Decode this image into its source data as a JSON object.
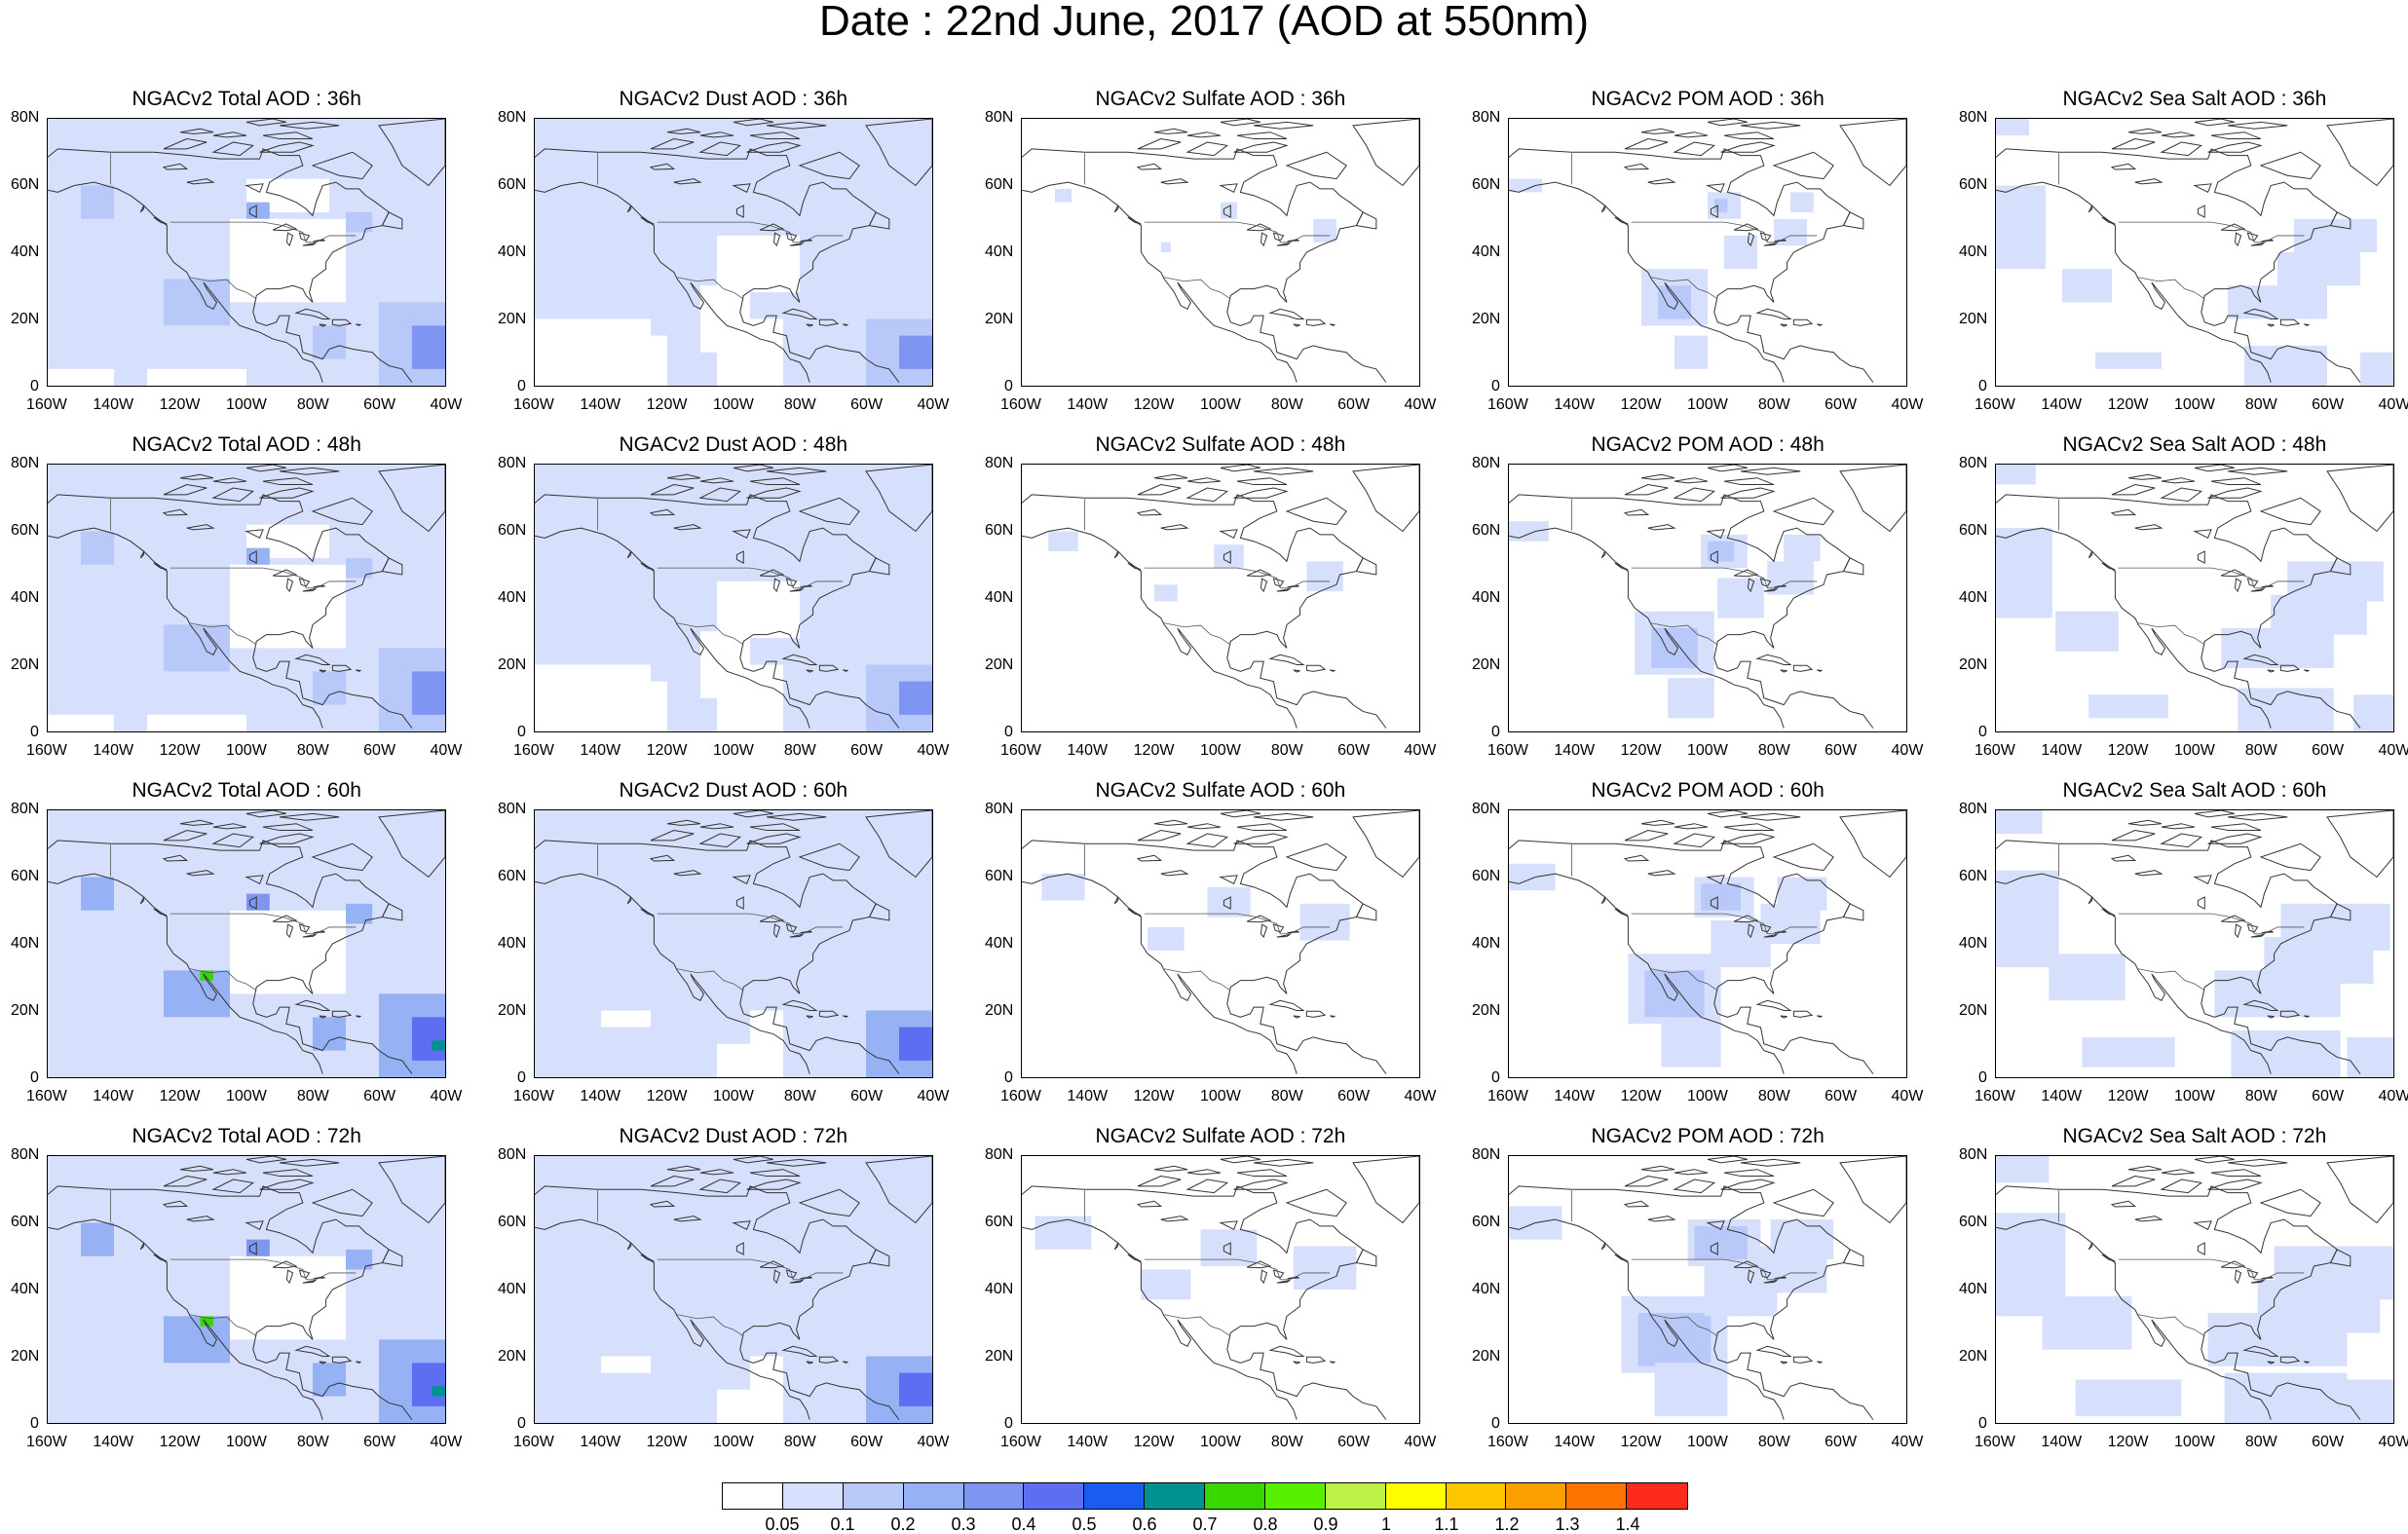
{
  "title": "Date : 22nd June, 2017 (AOD at 550nm)",
  "axes": {
    "lon_ticks": [
      "160W",
      "140W",
      "120W",
      "100W",
      "80W",
      "60W",
      "40W"
    ],
    "lat_ticks": [
      "0",
      "20N",
      "40N",
      "60N",
      "80N"
    ],
    "lon_range": [
      -160,
      -40
    ],
    "lat_range": [
      0,
      80
    ]
  },
  "panels": [
    {
      "title": "NGACv2 Total AOD : 36h",
      "species": "total",
      "hour": 36
    },
    {
      "title": "NGACv2 Dust AOD : 36h",
      "species": "dust",
      "hour": 36
    },
    {
      "title": "NGACv2 Sulfate AOD : 36h",
      "species": "sulfate",
      "hour": 36
    },
    {
      "title": "NGACv2 POM AOD : 36h",
      "species": "pom",
      "hour": 36
    },
    {
      "title": "NGACv2 Sea Salt AOD : 36h",
      "species": "seasalt",
      "hour": 36
    },
    {
      "title": "NGACv2 Total AOD : 48h",
      "species": "total",
      "hour": 48
    },
    {
      "title": "NGACv2 Dust AOD : 48h",
      "species": "dust",
      "hour": 48
    },
    {
      "title": "NGACv2 Sulfate AOD : 48h",
      "species": "sulfate",
      "hour": 48
    },
    {
      "title": "NGACv2 POM AOD : 48h",
      "species": "pom",
      "hour": 48
    },
    {
      "title": "NGACv2 Sea Salt AOD : 48h",
      "species": "seasalt",
      "hour": 48
    },
    {
      "title": "NGACv2 Total AOD : 60h",
      "species": "total",
      "hour": 60
    },
    {
      "title": "NGACv2 Dust AOD : 60h",
      "species": "dust",
      "hour": 60
    },
    {
      "title": "NGACv2 Sulfate AOD : 60h",
      "species": "sulfate",
      "hour": 60
    },
    {
      "title": "NGACv2 POM AOD : 60h",
      "species": "pom",
      "hour": 60
    },
    {
      "title": "NGACv2 Sea Salt AOD : 60h",
      "species": "seasalt",
      "hour": 60
    },
    {
      "title": "NGACv2 Total AOD : 72h",
      "species": "total",
      "hour": 72
    },
    {
      "title": "NGACv2 Dust AOD : 72h",
      "species": "dust",
      "hour": 72
    },
    {
      "title": "NGACv2 Sulfate AOD : 72h",
      "species": "sulfate",
      "hour": 72
    },
    {
      "title": "NGACv2 POM AOD : 72h",
      "species": "pom",
      "hour": 72
    },
    {
      "title": "NGACv2 Sea Salt  AOD : 72h",
      "species": "seasalt",
      "hour": 72
    }
  ],
  "colorbar": {
    "colors": [
      "#ffffff",
      "#d6e0fc",
      "#b7c8f9",
      "#97b1f5",
      "#7e95f2",
      "#5d6ef0",
      "#1a5cf0",
      "#009191",
      "#38d700",
      "#58f000",
      "#bdf349",
      "#fdfd00",
      "#fdc600",
      "#fd9f00",
      "#fd7300",
      "#fd2a1e"
    ],
    "labels": [
      "0.05",
      "0.1",
      "0.2",
      "0.3",
      "0.4",
      "0.5",
      "0.6",
      "0.7",
      "0.8",
      "0.9",
      "1",
      "1.1",
      "1.2",
      "1.3",
      "1.4"
    ]
  }
}
